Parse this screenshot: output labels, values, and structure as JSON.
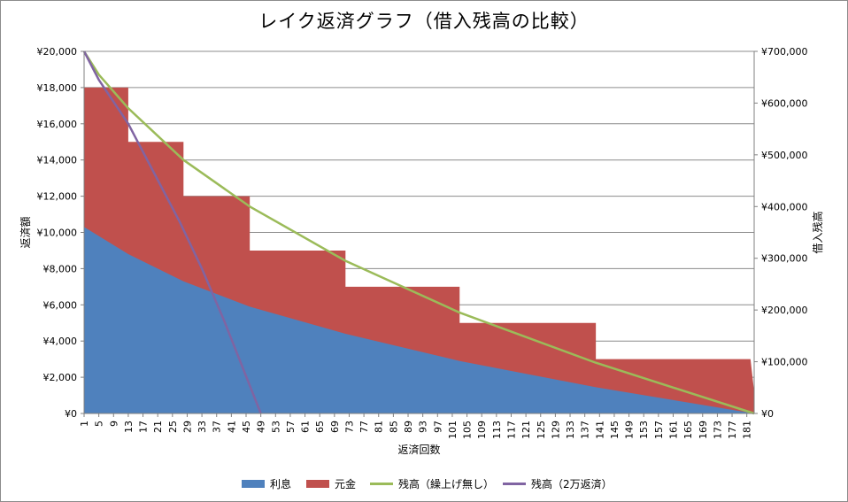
{
  "chart_data": {
    "type": "area",
    "title": "レイク返済グラフ（借入残高の比較）",
    "xlabel": "返済回数",
    "ylabel_left": "返済額",
    "ylabel_right": "借入残高",
    "x_range": [
      1,
      183
    ],
    "x_tick_labels": [
      "1",
      "5",
      "9",
      "13",
      "17",
      "21",
      "25",
      "29",
      "33",
      "37",
      "41",
      "45",
      "49",
      "53",
      "57",
      "61",
      "65",
      "69",
      "73",
      "77",
      "81",
      "85",
      "89",
      "93",
      "97",
      "101",
      "105",
      "109",
      "113",
      "117",
      "121",
      "125",
      "129",
      "133",
      "137",
      "141",
      "145",
      "149",
      "153",
      "157",
      "161",
      "165",
      "169",
      "173",
      "177",
      "181"
    ],
    "y_left": {
      "min": 0,
      "max": 20000,
      "ticks": [
        0,
        2000,
        4000,
        6000,
        8000,
        10000,
        12000,
        14000,
        16000,
        18000,
        20000
      ],
      "tick_labels": [
        "¥0",
        "¥2,000",
        "¥4,000",
        "¥6,000",
        "¥8,000",
        "¥10,000",
        "¥12,000",
        "¥14,000",
        "¥16,000",
        "¥18,000",
        "¥20,000"
      ]
    },
    "y_right": {
      "min": 0,
      "max": 700000,
      "ticks": [
        0,
        100000,
        200000,
        300000,
        400000,
        500000,
        600000,
        700000
      ],
      "tick_labels": [
        "¥0",
        "¥100,000",
        "¥200,000",
        "¥300,000",
        "¥400,000",
        "¥500,000",
        "¥600,000",
        "¥700,000"
      ]
    },
    "grid": true,
    "legend_position": "bottom",
    "series": [
      {
        "name": "利息",
        "type": "area",
        "axis": "left",
        "stack": "payment",
        "color": "#4f81bd",
        "points": [
          [
            1,
            10300
          ],
          [
            13,
            8800
          ],
          [
            28,
            7300
          ],
          [
            46,
            5900
          ],
          [
            72,
            4400
          ],
          [
            103,
            2900
          ],
          [
            140,
            1450
          ],
          [
            183,
            0
          ]
        ]
      },
      {
        "name": "元金",
        "type": "stacked-area-top",
        "axis": "left",
        "stack": "payment",
        "color": "#c0504d",
        "total_points": [
          [
            1,
            18000
          ],
          [
            13,
            18000
          ],
          [
            13,
            15000
          ],
          [
            28,
            15000
          ],
          [
            28,
            12000
          ],
          [
            46,
            12000
          ],
          [
            46,
            9000
          ],
          [
            72,
            9000
          ],
          [
            72,
            7000
          ],
          [
            103,
            7000
          ],
          [
            103,
            5000
          ],
          [
            140,
            5000
          ],
          [
            140,
            3000
          ],
          [
            182,
            3000
          ],
          [
            183,
            1200
          ],
          [
            183,
            0
          ]
        ]
      },
      {
        "name": "残高（繰上げ無し）",
        "type": "line",
        "axis": "right",
        "color": "#9bbb59",
        "points": [
          [
            1,
            700000
          ],
          [
            5,
            655000
          ],
          [
            13,
            590000
          ],
          [
            28,
            490000
          ],
          [
            46,
            400000
          ],
          [
            72,
            295000
          ],
          [
            103,
            195000
          ],
          [
            140,
            98000
          ],
          [
            183,
            0
          ]
        ]
      },
      {
        "name": "残高（2万返済）",
        "type": "line",
        "axis": "right",
        "color": "#8064a2",
        "points": [
          [
            1,
            700000
          ],
          [
            5,
            645000
          ],
          [
            13,
            560000
          ],
          [
            20,
            465000
          ],
          [
            27,
            370000
          ],
          [
            33,
            280000
          ],
          [
            39,
            180000
          ],
          [
            44,
            90000
          ],
          [
            49,
            0
          ]
        ]
      }
    ]
  }
}
